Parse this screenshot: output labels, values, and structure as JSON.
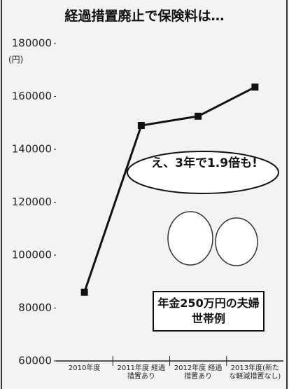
{
  "chart_data": {
    "type": "line",
    "title": "経過措置廃止で保険料は…",
    "y_unit": "(円)",
    "categories": [
      "2010年度",
      "2011年度 経過措置あり",
      "2012年度 経過措置あり",
      "2013年度(新たな軽減措置なし)"
    ],
    "series": [
      {
        "name": "保険料",
        "color": "#111111",
        "values": [
          86000,
          149000,
          152500,
          163500
        ]
      }
    ],
    "ylim": [
      60000,
      180000
    ],
    "yticks": [
      60000,
      80000,
      100000,
      120000,
      140000,
      160000,
      180000
    ],
    "annotations": [
      "え、3年で1.9倍も!",
      "年金250万円の夫婦世帯例"
    ]
  }
}
